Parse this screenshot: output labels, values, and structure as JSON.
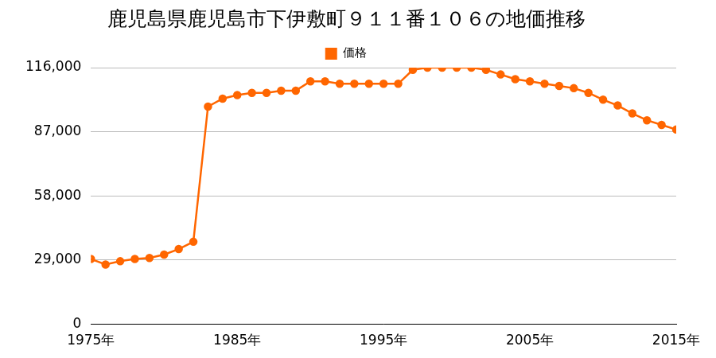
{
  "chart_data": {
    "type": "line",
    "title": "鹿児島県鹿児島市下伊敷町９１１番１０６の地価推移",
    "x": [
      1975,
      1976,
      1977,
      1978,
      1979,
      1980,
      1981,
      1982,
      1983,
      1984,
      1985,
      1986,
      1987,
      1988,
      1989,
      1990,
      1991,
      1992,
      1993,
      1994,
      1995,
      1996,
      1997,
      1998,
      1999,
      2000,
      2001,
      2002,
      2003,
      2004,
      2005,
      2006,
      2007,
      2008,
      2009,
      2010,
      2011,
      2012,
      2013,
      2014,
      2015
    ],
    "series": [
      {
        "name": "価格",
        "color": "#ff6600",
        "marker": "circle",
        "values": [
          29500,
          27000,
          28500,
          29500,
          30000,
          31500,
          34000,
          37300,
          98400,
          102000,
          103600,
          104600,
          104600,
          105600,
          105600,
          109800,
          109800,
          108700,
          108700,
          108700,
          108700,
          108700,
          115000,
          116000,
          116000,
          116000,
          116000,
          115000,
          112900,
          110800,
          109800,
          108700,
          107700,
          106700,
          104600,
          101500,
          98900,
          95300,
          92200,
          90100,
          88000
        ]
      }
    ],
    "xlim": [
      1975,
      2015
    ],
    "xticks": [
      {
        "value": 1975,
        "label": "1975年"
      },
      {
        "value": 1985,
        "label": "1985年"
      },
      {
        "value": 1995,
        "label": "1995年"
      },
      {
        "value": 2005,
        "label": "2005年"
      },
      {
        "value": 2015,
        "label": "2015年"
      }
    ],
    "ylim": [
      0,
      116000
    ],
    "yticks": [
      0,
      {
        "value": 29000,
        "label": "29,000"
      },
      {
        "value": 58000,
        "label": "58,000"
      },
      {
        "value": 87000,
        "label": "87,000"
      },
      {
        "value": 116000,
        "label": "116,000"
      }
    ],
    "grid": true,
    "legend": "top"
  }
}
